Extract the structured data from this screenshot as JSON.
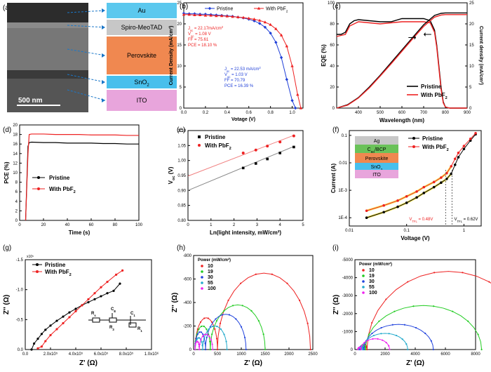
{
  "figure": {
    "panel_labels": [
      "(a)",
      "(b)",
      "(c)",
      "(d)",
      "(e)",
      "(f)",
      "(g)",
      "(h)",
      "(i)"
    ]
  },
  "panel_a": {
    "scale_bar": "500 nm",
    "layers": [
      "Au",
      "Spiro-MeoTAD",
      "Perovskite",
      "SnO2",
      "ITO"
    ],
    "layer_colors": [
      "#5bc8ee",
      "#c7c7c7",
      "#f08850",
      "#48bfec",
      "#e8a5dc"
    ]
  },
  "chart_data": [
    {
      "id": "b",
      "type": "line",
      "xlabel": "Votage (V)",
      "ylabel": "Current Density (mA/cm²)",
      "xlim": [
        0,
        1.1
      ],
      "ylim": [
        0,
        25
      ],
      "xticks": [
        "0.0",
        "0.2",
        "0.4",
        "0.6",
        "0.8",
        "1.0"
      ],
      "yticks": [
        "0",
        "5",
        "10",
        "15",
        "20",
        "25"
      ],
      "legend_placement": "top",
      "series": [
        {
          "name": "Pristine",
          "color": "#1f3fd8",
          "marker": "diamond",
          "x": [
            0.0,
            0.05,
            0.1,
            0.15,
            0.2,
            0.25,
            0.3,
            0.35,
            0.4,
            0.45,
            0.5,
            0.55,
            0.6,
            0.65,
            0.7,
            0.75,
            0.8,
            0.85,
            0.9,
            0.95,
            1.0,
            1.03
          ],
          "y": [
            22.5,
            22.4,
            22.4,
            22.3,
            22.3,
            22.2,
            22.1,
            22.0,
            21.9,
            21.8,
            21.6,
            21.4,
            21.1,
            20.7,
            20.1,
            19.2,
            17.8,
            15.6,
            12.0,
            6.8,
            1.8,
            0
          ]
        },
        {
          "name": "With PbF",
          "color": "#ee2222",
          "marker": "triangle",
          "x": [
            0.0,
            0.05,
            0.1,
            0.15,
            0.2,
            0.25,
            0.3,
            0.35,
            0.4,
            0.45,
            0.5,
            0.55,
            0.6,
            0.65,
            0.7,
            0.75,
            0.8,
            0.85,
            0.9,
            0.95,
            1.0,
            1.05,
            1.08
          ],
          "y": [
            22.2,
            22.2,
            22.1,
            22.1,
            22.0,
            22.0,
            21.9,
            21.9,
            21.8,
            21.7,
            21.6,
            21.5,
            21.3,
            21.1,
            20.8,
            20.4,
            19.8,
            18.8,
            17.3,
            14.7,
            10.0,
            3.2,
            0
          ]
        }
      ],
      "annotations": [
        {
          "lines": [
            "J",
            "sc",
            " = 22.17mA/cm",
            "2"
          ],
          "color": "#ee2222"
        },
        {
          "lines": [
            "V",
            "oc",
            " = 1.08 V"
          ],
          "color": "#ee2222"
        },
        {
          "lines": [
            "FF = 75.61"
          ],
          "color": "#ee2222"
        },
        {
          "lines": [
            "PCE = 18.10 %"
          ],
          "color": "#ee2222"
        },
        {
          "lines": [
            "J",
            "sc",
            " = 22.53 mA/cm",
            "2"
          ],
          "color": "#1f3fd8"
        },
        {
          "lines": [
            "V",
            "oc",
            " = 1.03 V"
          ],
          "color": "#1f3fd8"
        },
        {
          "lines": [
            "FF = 70.79"
          ],
          "color": "#1f3fd8"
        },
        {
          "lines": [
            "PCE = 16.39 %"
          ],
          "color": "#1f3fd8"
        }
      ]
    },
    {
      "id": "c",
      "type": "line",
      "xlabel": "Wavelength (nm)",
      "ylabel": "EQE (%)",
      "ylabel_right": "Current density (mA/cm²)",
      "xlim": [
        300,
        900
      ],
      "ylim": [
        0,
        100
      ],
      "ylim_right": [
        0,
        25
      ],
      "xticks": [
        "400",
        "500",
        "600",
        "700",
        "800",
        "900"
      ],
      "yticks": [
        "0",
        "20",
        "40",
        "60",
        "80",
        "100"
      ],
      "yticks_right": [
        "0",
        "5",
        "10",
        "15",
        "20",
        "25"
      ],
      "legend_placement": "bottom-right",
      "series": [
        {
          "name": "Pristine",
          "color": "#000000",
          "axis": "left",
          "x": [
            300,
            320,
            340,
            360,
            380,
            400,
            450,
            500,
            550,
            600,
            650,
            700,
            730,
            750,
            760,
            770,
            780,
            790,
            800,
            820,
            900
          ],
          "y": [
            70,
            70,
            72,
            80,
            83,
            84,
            83,
            82,
            82,
            85,
            85,
            85,
            83,
            74,
            60,
            40,
            20,
            6,
            1,
            0,
            0
          ]
        },
        {
          "name": "With PbF",
          "color": "#ee2222",
          "axis": "left",
          "x": [
            300,
            320,
            340,
            360,
            380,
            400,
            450,
            500,
            550,
            600,
            650,
            700,
            730,
            750,
            760,
            770,
            780,
            790,
            800,
            820,
            900
          ],
          "y": [
            68,
            69,
            70,
            78,
            80,
            82,
            81,
            80,
            81,
            82,
            82,
            82,
            81,
            72,
            58,
            38,
            18,
            5,
            1,
            0,
            0
          ]
        },
        {
          "name": "Pristine integrated",
          "color": "#000000",
          "axis": "right",
          "x": [
            300,
            350,
            400,
            450,
            500,
            550,
            600,
            650,
            700,
            750,
            780,
            800,
            900
          ],
          "y": [
            0,
            0.8,
            2.5,
            5.0,
            7.8,
            10.8,
            13.8,
            16.8,
            19.8,
            22.0,
            22.5,
            22.6,
            22.6
          ]
        },
        {
          "name": "With PbF integrated",
          "color": "#ee2222",
          "axis": "right",
          "x": [
            300,
            350,
            400,
            450,
            500,
            550,
            600,
            650,
            700,
            750,
            780,
            800,
            900
          ],
          "y": [
            0,
            0.7,
            2.4,
            4.8,
            7.6,
            10.5,
            13.5,
            16.5,
            19.4,
            21.6,
            22.1,
            22.2,
            22.2
          ]
        }
      ]
    },
    {
      "id": "d",
      "type": "line",
      "xlabel": "Time (s)",
      "ylabel": "PCE (%)",
      "xlim": [
        0,
        100
      ],
      "ylim": [
        0,
        20
      ],
      "xticks": [
        "0",
        "20",
        "40",
        "60",
        "80",
        "100"
      ],
      "yticks": [
        "0",
        "2",
        "4",
        "6",
        "8",
        "10",
        "12",
        "14",
        "16",
        "18",
        "20"
      ],
      "legend_placement": "center-left",
      "series": [
        {
          "name": "Pristine",
          "color": "#000000",
          "x": [
            5,
            7,
            8,
            10,
            20,
            30,
            40,
            50,
            60,
            70,
            80,
            90,
            100
          ],
          "y": [
            0,
            15.5,
            16.3,
            16.4,
            16.3,
            16.3,
            16.2,
            16.2,
            16.2,
            16.1,
            16.1,
            16.0,
            16.0
          ]
        },
        {
          "name": "With PbF",
          "color": "#ee2222",
          "x": [
            5,
            7,
            8,
            10,
            20,
            30,
            40,
            50,
            60,
            70,
            80,
            90,
            100
          ],
          "y": [
            0,
            14.0,
            18.0,
            18.1,
            18.1,
            18.0,
            18.0,
            18.0,
            17.9,
            17.9,
            17.9,
            17.8,
            17.8
          ]
        }
      ]
    },
    {
      "id": "e",
      "type": "scatter",
      "xlabel": "Ln(light intensity, mW/cm²)",
      "ylabel": "Voc (V)",
      "xlim": [
        0,
        5
      ],
      "ylim": [
        0.8,
        1.1
      ],
      "xticks": [
        "0",
        "1",
        "2",
        "3",
        "4",
        "5"
      ],
      "yticks": [
        "0.80",
        "0.85",
        "0.90",
        "0.95",
        "1.00",
        "1.05",
        "1.10"
      ],
      "legend_placement": "top-left",
      "series": [
        {
          "name": "Pristine",
          "color": "#000000",
          "x": [
            2.4,
            2.95,
            3.45,
            4.0,
            4.6
          ],
          "y": [
            0.975,
            0.99,
            1.005,
            1.025,
            1.045
          ],
          "fit": [
            [
              0,
              0.9
            ],
            [
              4.6,
              1.047
            ]
          ]
        },
        {
          "name": "With PbF",
          "color": "#ee2222",
          "x": [
            2.4,
            2.95,
            3.45,
            4.0,
            4.6
          ],
          "y": [
            1.025,
            1.035,
            1.048,
            1.062,
            1.082
          ],
          "fit": [
            [
              0,
              0.948
            ],
            [
              4.6,
              1.084
            ]
          ]
        }
      ]
    },
    {
      "id": "f",
      "type": "scatter",
      "xlabel": "Voltage (V)",
      "ylabel": "Current (A)",
      "xscale": "log",
      "yscale": "log",
      "xlim": [
        0.01,
        2
      ],
      "ylim": [
        5e-05,
        0.15
      ],
      "xticks": [
        "0.01",
        "0.1",
        "1"
      ],
      "yticks": [
        "1E-4",
        "1E-3",
        "0.01",
        "0.1"
      ],
      "legend_placement": "top-right",
      "vtfl": [
        {
          "label": "V",
          "sub": "TFL",
          "value": "= 0.48V",
          "v": 0.48
        },
        {
          "label": "V",
          "sub": "TFL",
          "value": "= 0.62V",
          "v": 0.62
        }
      ],
      "inset_layers": [
        {
          "text": "Ag",
          "color": "#c7c7c7"
        },
        {
          "text": "C",
          "sub": "60",
          "post": "/BCP",
          "color": "#6ac259"
        },
        {
          "text": "Perovskite",
          "color": "#f08850"
        },
        {
          "text": "SnO",
          "sub": "2",
          "color": "#48bfec"
        },
        {
          "text": "ITO",
          "color": "#e8a5dc"
        }
      ],
      "series": [
        {
          "name": "Pristine",
          "color": "#000000",
          "x": [
            0.02,
            0.04,
            0.07,
            0.1,
            0.15,
            0.2,
            0.3,
            0.4,
            0.5,
            0.6,
            0.7,
            0.8,
            1.0,
            1.3,
            1.6
          ],
          "y": [
            0.0001,
            0.00016,
            0.00025,
            0.00035,
            0.00055,
            0.0008,
            0.0013,
            0.0019,
            0.0026,
            0.004,
            0.0085,
            0.016,
            0.032,
            0.065,
            0.11
          ]
        },
        {
          "name": "With PbF",
          "color": "#ee2222",
          "x": [
            0.02,
            0.04,
            0.07,
            0.1,
            0.15,
            0.2,
            0.3,
            0.4,
            0.5,
            0.6,
            0.7,
            0.8,
            1.0,
            1.3,
            1.6
          ],
          "y": [
            0.00018,
            0.00028,
            0.00042,
            0.0006,
            0.0009,
            0.0013,
            0.002,
            0.0029,
            0.0042,
            0.0075,
            0.014,
            0.023,
            0.041,
            0.075,
            0.12
          ]
        }
      ]
    },
    {
      "id": "g",
      "type": "line",
      "xlabel": "Z' (Ω)",
      "ylabel": "Z'' (Ω)",
      "y_multiplier": "x10⁵",
      "xlim": [
        0,
        1.0
      ],
      "ylim": [
        0,
        -1.5
      ],
      "xticks": [
        "0.0",
        "2.0x10⁵",
        "4.0x10⁵",
        "6.0x10⁵",
        "8.0x10⁵",
        "1.0x10⁶"
      ],
      "yticks": [
        "0.0",
        "-0.5",
        "-1.0",
        "-1.5"
      ],
      "legend_placement": "top-left",
      "circuit_labels": [
        "Rs",
        "CE",
        "R3",
        "C1",
        "R1"
      ],
      "series": [
        {
          "name": "Pristine",
          "color": "#000000",
          "x": [
            0.05,
            0.07,
            0.1,
            0.13,
            0.16,
            0.2,
            0.25,
            0.3,
            0.35,
            0.4,
            0.45,
            0.5,
            0.55,
            0.6,
            0.65,
            0.7,
            0.75
          ],
          "y": [
            0,
            -0.1,
            -0.18,
            -0.26,
            -0.33,
            -0.4,
            -0.48,
            -0.55,
            -0.62,
            -0.68,
            -0.74,
            -0.79,
            -0.84,
            -0.89,
            -0.94,
            -0.98,
            -1.1
          ]
        },
        {
          "name": "With PbF",
          "color": "#ee2222",
          "x": [
            0.1,
            0.13,
            0.16,
            0.2,
            0.25,
            0.3,
            0.35,
            0.4,
            0.45,
            0.5,
            0.55,
            0.6,
            0.65,
            0.72,
            0.77
          ],
          "y": [
            -0.02,
            -0.05,
            -0.14,
            -0.24,
            -0.34,
            -0.44,
            -0.54,
            -0.64,
            -0.74,
            -0.84,
            -0.94,
            -1.04,
            -1.13,
            -1.25,
            -1.32
          ]
        }
      ]
    },
    {
      "id": "h",
      "type": "scatter",
      "xlabel": "Z' (Ω)",
      "ylabel": "Z'' (Ω)",
      "xlim": [
        0,
        2500
      ],
      "ylim": [
        0,
        -800
      ],
      "xticks": [
        "0",
        "500",
        "1000",
        "1500",
        "2000",
        "2500"
      ],
      "yticks": [
        "0",
        "-200",
        "-400",
        "-600",
        "-800"
      ],
      "legend_title": "Power (mW/cm²)",
      "legend_placement": "top-left",
      "series": [
        {
          "name": "10",
          "color": "#ee2222",
          "arcs": [
            [
              30,
              500,
              270
            ],
            [
              500,
              2450,
              650
            ]
          ]
        },
        {
          "name": "19",
          "color": "#22cc22",
          "arcs": [
            [
              30,
              350,
              200
            ],
            [
              350,
              1500,
              380
            ]
          ]
        },
        {
          "name": "30",
          "color": "#2244dd",
          "arcs": [
            [
              30,
              250,
              150
            ],
            [
              250,
              1100,
              300
            ]
          ]
        },
        {
          "name": "55",
          "color": "#22aacc",
          "arcs": [
            [
              30,
              190,
              100
            ],
            [
              190,
              700,
              200
            ]
          ]
        },
        {
          "name": "100",
          "color": "#ee22ee",
          "arcs": [
            [
              30,
              120,
              70
            ],
            [
              120,
              400,
              130
            ]
          ]
        }
      ]
    },
    {
      "id": "i",
      "type": "scatter",
      "xlabel": "Z' (Ω)",
      "ylabel": "Z'' (Ω)",
      "xlim": [
        0,
        8000
      ],
      "ylim": [
        0,
        -5000
      ],
      "xticks": [
        "0",
        "2000",
        "4000",
        "6000",
        "8000"
      ],
      "yticks": [
        "0",
        "-1000",
        "-2000",
        "-3000",
        "-4000",
        "-5000"
      ],
      "legend_title": "Power (mW/cm²)",
      "legend_placement": "top-left",
      "series": [
        {
          "name": "10",
          "color": "#ee2222",
          "arcs": [
            [
              400,
              800,
              300
            ],
            [
              800,
              11600,
              4350
            ]
          ]
        },
        {
          "name": "19",
          "color": "#22cc22",
          "arcs": [
            [
              350,
              700,
              250
            ],
            [
              700,
              8400,
              2450
            ]
          ]
        },
        {
          "name": "30",
          "color": "#2244dd",
          "arcs": [
            [
              300,
              600,
              200
            ],
            [
              600,
              5200,
              1400
            ]
          ]
        },
        {
          "name": "55",
          "color": "#22aacc",
          "arcs": [
            [
              250,
              500,
              150
            ],
            [
              500,
              3500,
              900
            ]
          ]
        },
        {
          "name": "100",
          "color": "#ee22ee",
          "arcs": [
            [
              200,
              400,
              120
            ],
            [
              400,
              2300,
              600
            ]
          ]
        }
      ]
    }
  ]
}
